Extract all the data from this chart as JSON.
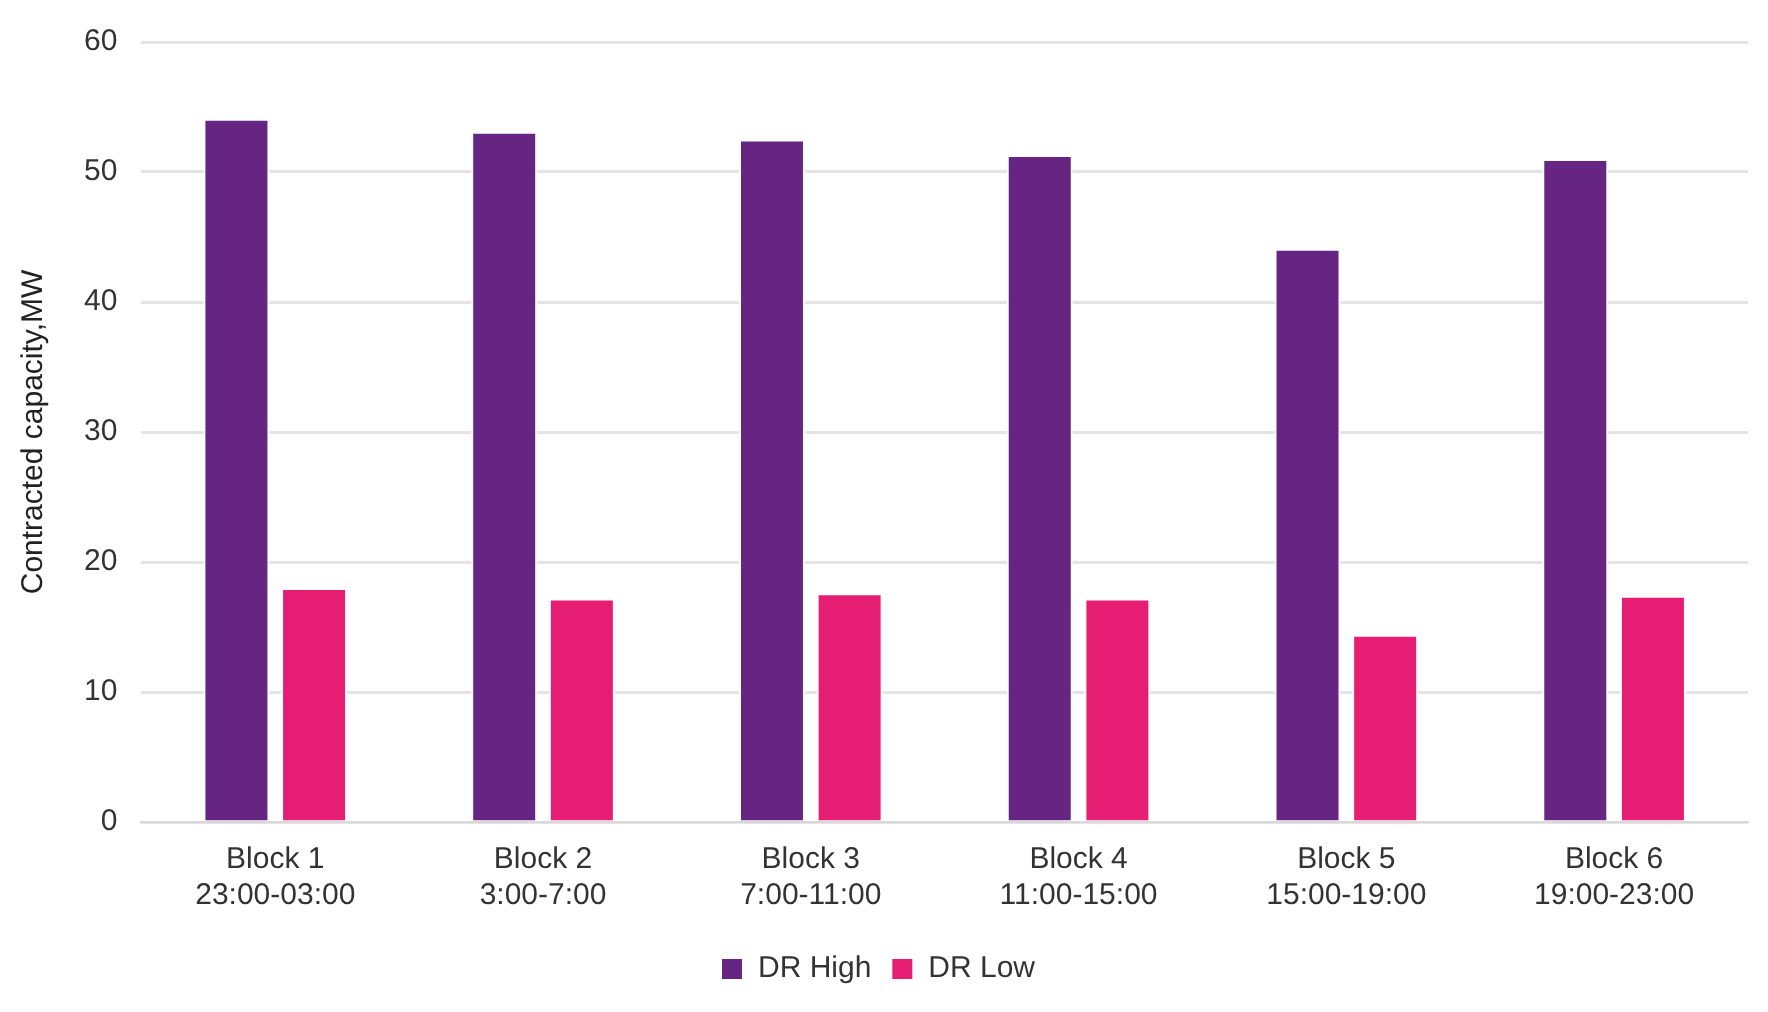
{
  "chart_data": {
    "type": "bar",
    "ylabel": "Contracted capacity,MW",
    "categories": [
      "Block 1\n23:00-03:00",
      "Block 2\n3:00-7:00",
      "Block 3\n7:00-11:00",
      "Block 4\n11:00-15:00",
      "Block 5\n15:00-19:00",
      "Block 6\n19:00-23:00"
    ],
    "series": [
      {
        "name": "DR High",
        "color": "#662483",
        "values": [
          54.1,
          53.1,
          52.5,
          51.3,
          44.1,
          51.0
        ]
      },
      {
        "name": "DR Low",
        "color": "#e61e73",
        "values": [
          18.0,
          17.2,
          17.6,
          17.2,
          14.4,
          17.4
        ]
      }
    ],
    "ylim": [
      0,
      60
    ],
    "yticks": [
      0,
      10,
      20,
      30,
      40,
      50,
      60
    ],
    "grid": "y",
    "legend": "bottom"
  }
}
